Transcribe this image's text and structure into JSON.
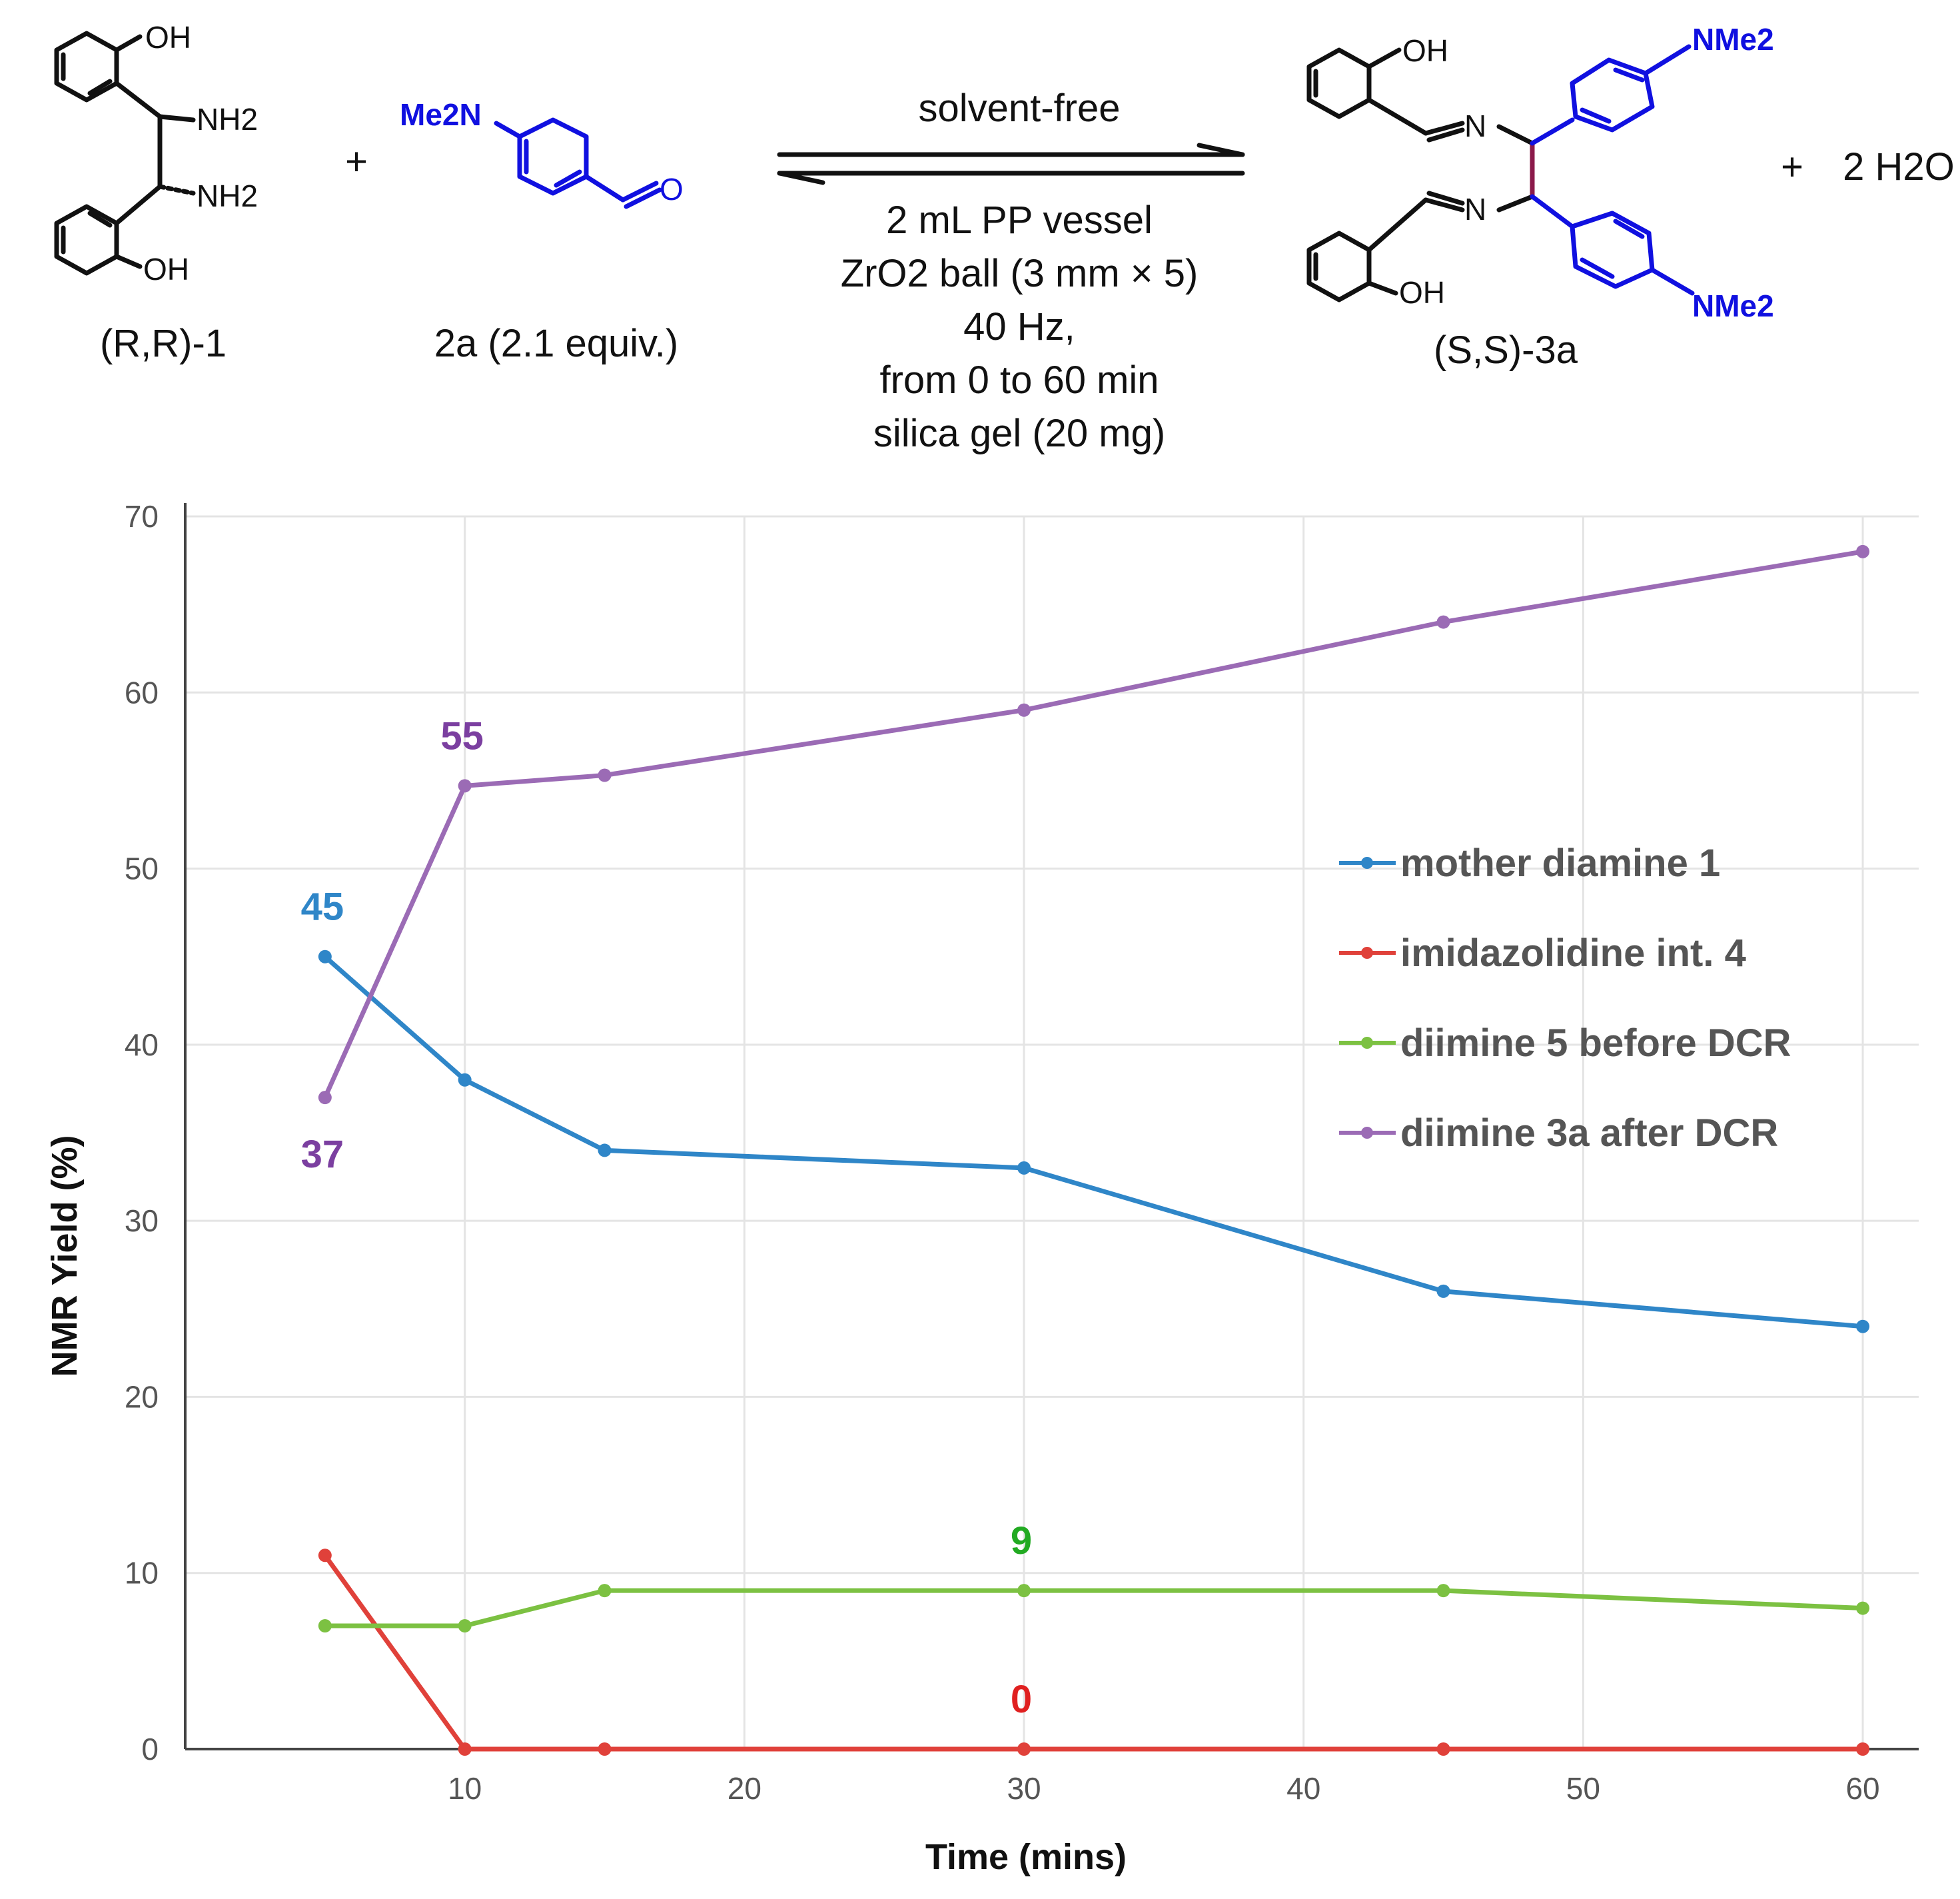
{
  "scheme": {
    "reactant1_label": "(R,R)-1",
    "plus_1": "+",
    "reactant2_label": "2a (2.1 equiv.)",
    "reactant2_group": "Me2N",
    "product_label": "(S,S)-3a",
    "plus_2": "+",
    "byproduct": "2 H2O",
    "atoms": {
      "oh": "OH",
      "nh2": "NH2",
      "nme2": "NMe2",
      "n": "N",
      "o": "O"
    },
    "conditions_above": "solvent-free",
    "conditions_below": [
      "2 mL PP vessel",
      "ZrO2 ball (3 mm × 5)",
      "40 Hz,",
      "from 0 to 60 min",
      "silica gel (20 mg)"
    ],
    "reagent_color": "#1010e0",
    "bond_color": "#8b1a4a"
  },
  "chart_data": {
    "type": "line",
    "xlabel": "Time (mins)",
    "ylabel": "NMR Yield (%)",
    "xlim": [
      0,
      62
    ],
    "ylim": [
      0,
      70
    ],
    "xticks": [
      10,
      20,
      30,
      40,
      50,
      60
    ],
    "yticks": [
      0,
      10,
      20,
      30,
      40,
      50,
      60,
      70
    ],
    "grid": true,
    "legend_position": "right",
    "x": [
      5,
      10,
      15,
      30,
      45,
      60
    ],
    "series": [
      {
        "name": "mother diamine 1",
        "color": "#2f86c8",
        "values": [
          45,
          38,
          34,
          33,
          26,
          24
        ]
      },
      {
        "name": "imidazolidine int. 4",
        "color": "#e0413a",
        "values": [
          11,
          0,
          0,
          0,
          0,
          0
        ]
      },
      {
        "name": "diimine 5 before DCR",
        "color": "#7cc142",
        "values": [
          7,
          7,
          9,
          9,
          9,
          8
        ]
      },
      {
        "name": "diimine 3a after DCR",
        "color": "#9b6bb5",
        "values": [
          37,
          54.7,
          55.3,
          59,
          64,
          68
        ]
      }
    ],
    "annotations": [
      {
        "text": "45",
        "x": 5,
        "y": 45,
        "color": "#2f86c8",
        "pos": "above"
      },
      {
        "text": "37",
        "x": 5,
        "y": 37,
        "color": "#7b3fa0",
        "pos": "below"
      },
      {
        "text": "55",
        "x": 10,
        "y": 54.7,
        "color": "#7b3fa0",
        "pos": "above"
      },
      {
        "text": "9",
        "x": 30,
        "y": 9,
        "color": "#22aa22",
        "pos": "above"
      },
      {
        "text": "0",
        "x": 30,
        "y": 0,
        "color": "#e02020",
        "pos": "above"
      }
    ]
  }
}
